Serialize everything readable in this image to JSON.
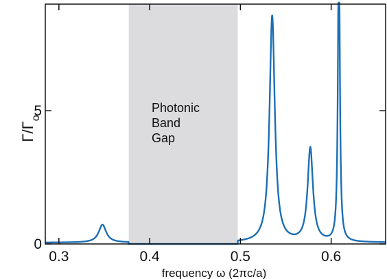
{
  "chart_data": {
    "type": "line",
    "xlabel": "frequency ω (2πc/a)",
    "ylabel": "Γ/Γ",
    "ylabel_subscript": "o",
    "xlim": [
      0.285,
      0.66
    ],
    "ylim": [
      0,
      9
    ],
    "x_ticks": [
      0.3,
      0.4,
      0.5,
      0.6
    ],
    "x_tick_labels": [
      "0.3",
      "0.4",
      "0.5",
      "0.6"
    ],
    "y_ticks": [
      0,
      5
    ],
    "y_tick_labels": [
      "0",
      "5"
    ],
    "band_gap": {
      "x_range": [
        0.377,
        0.497
      ],
      "label_lines": [
        "Photonic",
        "Band",
        "Gap"
      ],
      "color": "#dcdcdf"
    },
    "line_color": "#1c6fb5",
    "series": [
      {
        "baseline": 0.05,
        "peaks": [
          {
            "x0": 0.348,
            "height": 0.72,
            "width": 0.005
          },
          {
            "x0": 0.535,
            "height": 8.55,
            "width": 0.0035
          },
          {
            "x0": 0.577,
            "height": 3.57,
            "width": 0.0035
          },
          {
            "x0": 0.6085,
            "height": 12.0,
            "width": 0.0012
          }
        ]
      }
    ]
  }
}
